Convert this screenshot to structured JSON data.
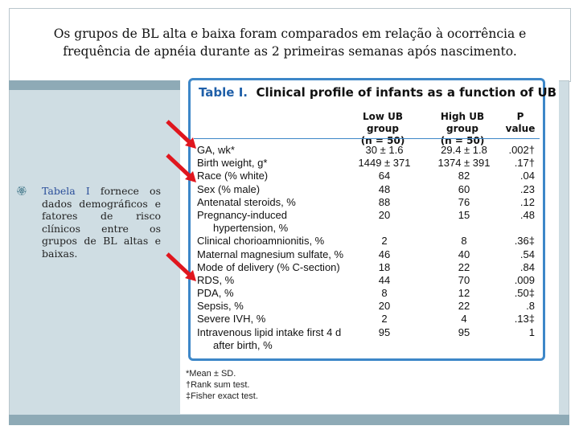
{
  "title": {
    "line1": "Os grupos de BL alta e baixa foram comparados em relação à ocorrência e",
    "line2": "frequência de apnéia durante as 2 primeiras semanas após nascimento."
  },
  "bullet": {
    "mark": "ఌ",
    "highlight": "Tabela I",
    "text": " fornece os dados demográficos e fatores de risco clínicos entre os grupos de BL altas e baixas."
  },
  "table": {
    "title_num": "Table I.",
    "title_rest": "Clinical profile of infants as a function of UB",
    "headers": {
      "low": "Low UB group",
      "low_n": "(n = 50)",
      "high": "High UB group",
      "high_n": "(n = 50)",
      "p": "P",
      "p2": "value"
    },
    "rows": [
      {
        "label": "GA, wk*",
        "low": "30 ± 1.6",
        "high": "29.4 ± 1.8",
        "p": ".002†"
      },
      {
        "label": "Birth weight, g*",
        "low": "1449 ± 371",
        "high": "1374 ± 391",
        "p": ".17†"
      },
      {
        "label": "Race (% white)",
        "low": "64",
        "high": "82",
        "p": ".04"
      },
      {
        "label": "Sex (% male)",
        "low": "48",
        "high": "60",
        "p": ".23"
      },
      {
        "label": "Antenatal steroids, %",
        "low": "88",
        "high": "76",
        "p": ".12"
      },
      {
        "label": "Pregnancy-induced",
        "low": "20",
        "high": "15",
        "p": ".48"
      },
      {
        "label": "    hypertension, %",
        "low": "",
        "high": "",
        "p": ""
      },
      {
        "label": "Clinical chorioamnionitis, %",
        "low": "2",
        "high": "8",
        "p": ".36‡"
      },
      {
        "label": "Maternal magnesium sulfate, %",
        "low": "46",
        "high": "40",
        "p": ".54"
      },
      {
        "label": "Mode of delivery (% C-section)",
        "low": "18",
        "high": "22",
        "p": ".84"
      },
      {
        "label": "RDS, %",
        "low": "44",
        "high": "70",
        "p": ".009"
      },
      {
        "label": "PDA, %",
        "low": "8",
        "high": "12",
        "p": ".50‡"
      },
      {
        "label": "Sepsis, %",
        "low": "20",
        "high": "22",
        "p": ".8"
      },
      {
        "label": "Severe IVH, %",
        "low": "2",
        "high": "4",
        "p": ".13‡"
      },
      {
        "label": "Intravenous lipid intake first 4 d",
        "low": "95",
        "high": "95",
        "p": "1"
      },
      {
        "label": "    after birth, %",
        "low": "",
        "high": "",
        "p": ""
      }
    ],
    "footnotes": [
      "*Mean ± SD.",
      "†Rank sum test.",
      "‡Fisher exact test."
    ]
  },
  "colors": {
    "accent_blue": "#3d87c8",
    "arrow_red": "#e0161e",
    "slide_bg": "#cfdde3"
  }
}
